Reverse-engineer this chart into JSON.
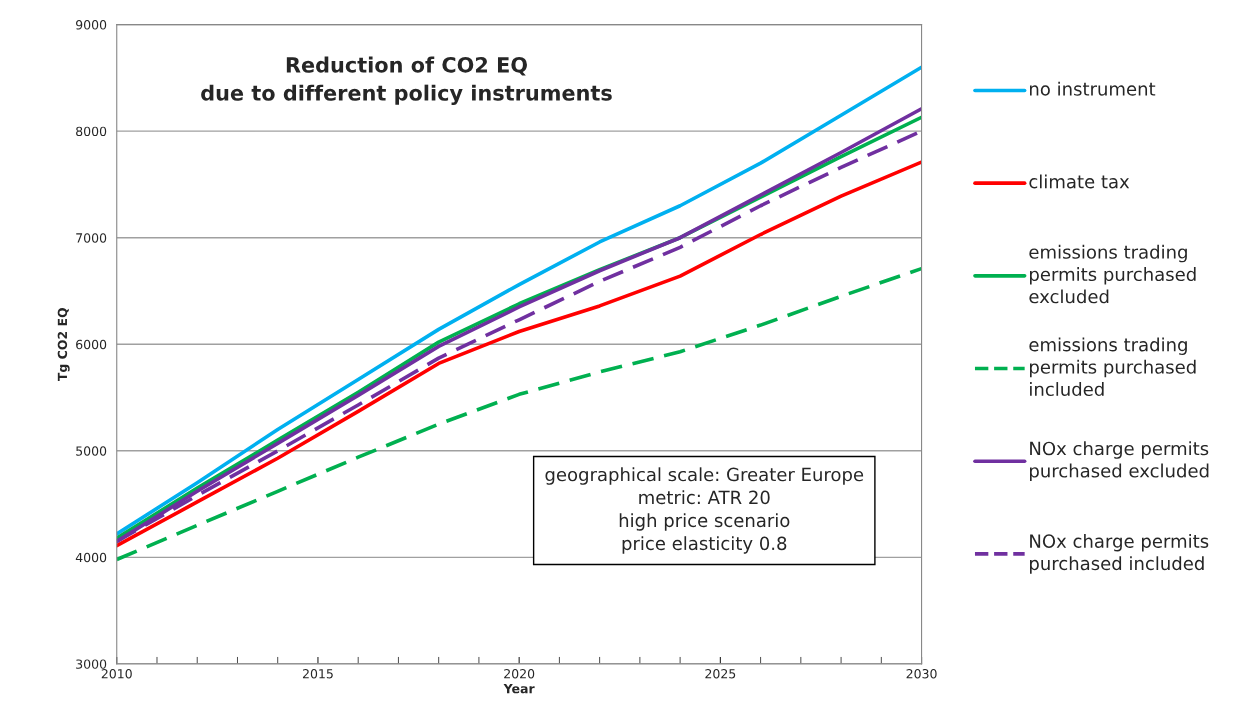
{
  "chart_data": {
    "type": "line",
    "title": "Reduction of CO2 EQ\ndue to different policy instruments",
    "xlabel": "Year",
    "ylabel": "Tg CO2 EQ",
    "x": [
      2010,
      2012,
      2014,
      2016,
      2018,
      2020,
      2022,
      2024,
      2026,
      2028,
      2030
    ],
    "series": [
      {
        "name": "no instrument",
        "color": "#00b0f0",
        "values": [
          4220,
          4700,
          5200,
          5670,
          6140,
          6560,
          6960,
          7300,
          7700,
          8150,
          8600
        ]
      },
      {
        "name": "climate tax",
        "color": "#ff0000",
        "values": [
          4110,
          4520,
          4930,
          5370,
          5820,
          6120,
          6360,
          6640,
          7030,
          7390,
          7710
        ]
      },
      {
        "name": "emissions trading permits purchased excluded",
        "color": "#00b050",
        "values": [
          4180,
          4650,
          5100,
          5550,
          6020,
          6380,
          6700,
          7000,
          7380,
          7760,
          8130
        ]
      },
      {
        "name": "emissions trading permits purchased included",
        "color": "#00b050",
        "line_style": "dashed",
        "values": [
          3980,
          4300,
          4620,
          4940,
          5250,
          5530,
          5740,
          5930,
          6180,
          6450,
          6710
        ]
      },
      {
        "name": "NOx charge permits purchased excluded",
        "color": "#7030a0",
        "values": [
          4150,
          4620,
          5070,
          5520,
          5980,
          6350,
          6690,
          7000,
          7400,
          7800,
          8210
        ]
      },
      {
        "name": "NOx charge permits purchased included",
        "color": "#7030a0",
        "line_style": "dashed",
        "values": [
          4150,
          4580,
          5000,
          5430,
          5870,
          6230,
          6590,
          6910,
          7300,
          7660,
          8000
        ]
      }
    ],
    "xlim": [
      2010,
      2030
    ],
    "xticks": [
      2010,
      2015,
      2020,
      2025,
      2030
    ],
    "ylim": [
      3000,
      9000
    ],
    "yticks": [
      3000,
      4000,
      5000,
      6000,
      7000,
      8000,
      9000
    ],
    "grid": "y",
    "legend": "right",
    "marker": "none",
    "line_style": "solid",
    "annotations": [
      "geographical scale: Greater Europe",
      "metric: ATR 20",
      "high price scenario",
      "price elasticity 0.8"
    ]
  }
}
